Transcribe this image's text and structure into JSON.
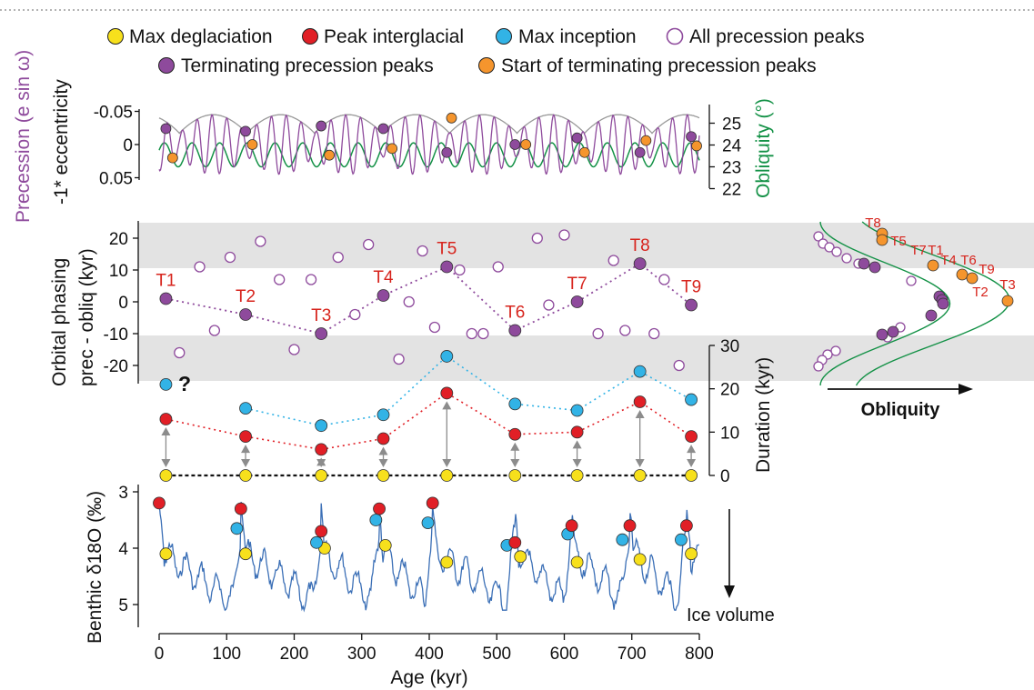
{
  "colors": {
    "precession": "#8e4a9c",
    "obliquity": "#139146",
    "eccentricity_envelope": "#999999",
    "max_deglaciation": "#f7e01c",
    "peak_interglacial": "#e11f26",
    "max_inception": "#32b3e6",
    "terminating_peak": "#8e4a9c",
    "start_terminating": "#f5952d",
    "termination_label": "#d7241d",
    "arrow": "#8c8c8c",
    "benthic_line": "#3b6fb6",
    "band": "#e3e3e3"
  },
  "legend": {
    "items": [
      {
        "label": "Max deglaciation",
        "marker": "circle-yellow"
      },
      {
        "label": "Peak interglacial",
        "marker": "circle-red"
      },
      {
        "label": "Max inception",
        "marker": "circle-blue"
      },
      {
        "label": "All precession peaks",
        "marker": "circle-open-purple"
      },
      {
        "label": "Terminating precession peaks",
        "marker": "circle-purple"
      },
      {
        "label": "Start of terminating precession peaks",
        "marker": "circle-orange"
      }
    ]
  },
  "chart_data": [
    {
      "type": "line",
      "panel": "orbital-parameters",
      "ylabel_left": [
        "Precession (e sin ω)",
        "-1* eccentricity"
      ],
      "ylabel_right": "Obliquity (°)",
      "left_ticks": [
        "-0.05",
        "0",
        "0.05"
      ],
      "left_ylim": [
        0.06,
        -0.06
      ],
      "right_ticks": [
        "25",
        "24",
        "23",
        "22"
      ],
      "right_ylim": [
        21.8,
        25.2
      ],
      "xlim": [
        0,
        800
      ],
      "terminating_peaks": [
        {
          "x": 10,
          "y": -0.024
        },
        {
          "x": 128,
          "y": -0.02
        },
        {
          "x": 240,
          "y": -0.028
        },
        {
          "x": 332,
          "y": -0.024
        },
        {
          "x": 426,
          "y": 0.012
        },
        {
          "x": 527,
          "y": 0.0
        },
        {
          "x": 619,
          "y": -0.01
        },
        {
          "x": 712,
          "y": 0.012
        },
        {
          "x": 788,
          "y": -0.012
        }
      ],
      "start_of_peaks": [
        {
          "x": 20,
          "y": 0.02
        },
        {
          "x": 138,
          "y": 0.0
        },
        {
          "x": 252,
          "y": 0.016
        },
        {
          "x": 345,
          "y": 0.006
        },
        {
          "x": 433,
          "y": -0.04
        },
        {
          "x": 543,
          "y": 0.0
        },
        {
          "x": 630,
          "y": 0.012
        },
        {
          "x": 721,
          "y": -0.006
        },
        {
          "x": 796,
          "y": 0.002
        }
      ]
    },
    {
      "type": "scatter",
      "panel": "orbital-phasing",
      "ylabel": [
        "Orbital phasing",
        "prec - obliq (kyr)"
      ],
      "yticks": [
        "20",
        "10",
        "0",
        "-10",
        "-20"
      ],
      "ylim": [
        -25,
        25
      ],
      "xlim": [
        0,
        800
      ],
      "shaded_bands": [
        [
          10,
          25
        ],
        [
          -25,
          -10
        ]
      ],
      "all_precession_peaks": [
        {
          "x": 30,
          "y": -16
        },
        {
          "x": 60,
          "y": 11
        },
        {
          "x": 82,
          "y": -9
        },
        {
          "x": 105,
          "y": 14
        },
        {
          "x": 150,
          "y": 19
        },
        {
          "x": 178,
          "y": 7
        },
        {
          "x": 200,
          "y": -15
        },
        {
          "x": 225,
          "y": 7
        },
        {
          "x": 265,
          "y": 14
        },
        {
          "x": 290,
          "y": -4
        },
        {
          "x": 310,
          "y": 18
        },
        {
          "x": 355,
          "y": -18
        },
        {
          "x": 370,
          "y": 0
        },
        {
          "x": 390,
          "y": 16
        },
        {
          "x": 408,
          "y": -8
        },
        {
          "x": 445,
          "y": 10
        },
        {
          "x": 463,
          "y": -10
        },
        {
          "x": 480,
          "y": -10
        },
        {
          "x": 502,
          "y": 11
        },
        {
          "x": 560,
          "y": 20
        },
        {
          "x": 577,
          "y": -1
        },
        {
          "x": 600,
          "y": 21
        },
        {
          "x": 650,
          "y": -10
        },
        {
          "x": 673,
          "y": 13
        },
        {
          "x": 690,
          "y": -9
        },
        {
          "x": 733,
          "y": -10
        },
        {
          "x": 748,
          "y": 7
        },
        {
          "x": 770,
          "y": -20
        }
      ],
      "terminating_precession_peaks": [
        {
          "label": "T1",
          "x": 10,
          "y": 1
        },
        {
          "label": "T2",
          "x": 128,
          "y": -4
        },
        {
          "label": "T3",
          "x": 240,
          "y": -10
        },
        {
          "label": "T4",
          "x": 332,
          "y": 2
        },
        {
          "label": "T5",
          "x": 426,
          "y": 11
        },
        {
          "label": "T6",
          "x": 527,
          "y": -9
        },
        {
          "label": "T7",
          "x": 619,
          "y": 0
        },
        {
          "label": "T8",
          "x": 712,
          "y": 12
        },
        {
          "label": "T9",
          "x": 788,
          "y": -1
        }
      ]
    },
    {
      "type": "scatter",
      "panel": "duration",
      "ylabel": "Duration (kyr)",
      "yticks": [
        "30",
        "20",
        "10",
        "0"
      ],
      "ylim": [
        0,
        30
      ],
      "xlim": [
        0,
        800
      ],
      "annotation": "?",
      "x": [
        10,
        128,
        240,
        332,
        426,
        527,
        619,
        712,
        788
      ],
      "series": [
        {
          "name": "Max inception",
          "values": [
            21,
            15.5,
            11.5,
            14,
            27.5,
            16.5,
            15,
            24,
            17.5
          ]
        },
        {
          "name": "Peak interglacial",
          "values": [
            13,
            9,
            6,
            8.5,
            19,
            9.5,
            10,
            17,
            9
          ]
        },
        {
          "name": "Max deglaciation",
          "values": [
            0,
            0,
            0,
            0,
            0,
            0,
            0,
            0,
            0
          ]
        }
      ]
    },
    {
      "type": "line",
      "panel": "benthic",
      "ylabel": "Benthic δ18O (‰)",
      "yticks": [
        "3",
        "4",
        "5"
      ],
      "ylim": [
        5.3,
        2.9
      ],
      "xlim": [
        0,
        800
      ],
      "xticks": [
        "0",
        "100",
        "200",
        "300",
        "400",
        "500",
        "600",
        "700",
        "800"
      ],
      "xlabel": "Age (kyr)",
      "annotation": "Ice volume",
      "peak_interglacial": [
        {
          "x": 0,
          "y": 3.2
        },
        {
          "x": 121,
          "y": 3.3
        },
        {
          "x": 240,
          "y": 3.7
        },
        {
          "x": 326,
          "y": 3.3
        },
        {
          "x": 405,
          "y": 3.2
        },
        {
          "x": 527,
          "y": 3.9
        },
        {
          "x": 611,
          "y": 3.6
        },
        {
          "x": 697,
          "y": 3.6
        },
        {
          "x": 781,
          "y": 3.6
        }
      ],
      "max_inception": [
        {
          "x": 115,
          "y": 3.65
        },
        {
          "x": 233,
          "y": 3.9
        },
        {
          "x": 321,
          "y": 3.5
        },
        {
          "x": 398,
          "y": 3.55
        },
        {
          "x": 515,
          "y": 3.95
        },
        {
          "x": 605,
          "y": 3.75
        },
        {
          "x": 686,
          "y": 3.85
        },
        {
          "x": 773,
          "y": 3.85
        }
      ],
      "max_deglaciation": [
        {
          "x": 10,
          "y": 4.1
        },
        {
          "x": 128,
          "y": 4.1
        },
        {
          "x": 245,
          "y": 4.0
        },
        {
          "x": 335,
          "y": 3.95
        },
        {
          "x": 426,
          "y": 4.25
        },
        {
          "x": 535,
          "y": 4.15
        },
        {
          "x": 619,
          "y": 4.25
        },
        {
          "x": 712,
          "y": 4.2
        },
        {
          "x": 788,
          "y": 4.1
        }
      ]
    },
    {
      "type": "scatter",
      "panel": "obliquity-inset",
      "xlabel": "Obliquity",
      "termination_labels": [
        "T8",
        "T5",
        "T7",
        "T1",
        "T4",
        "T6",
        "T9",
        "T2",
        "T3"
      ]
    }
  ]
}
